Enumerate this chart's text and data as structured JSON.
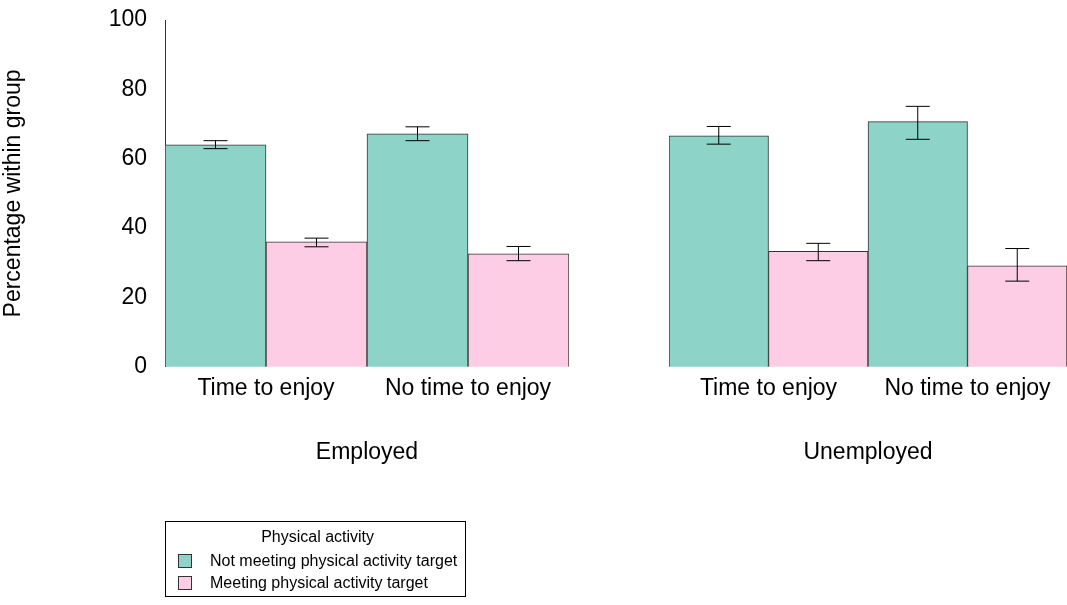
{
  "chart_data": [
    {
      "type": "bar",
      "xlabel": "Employed",
      "ylabel": "Percentage within group",
      "categories": [
        "Time to enjoy",
        "No time to enjoy"
      ],
      "ylim": [
        0,
        100
      ],
      "yticks": [
        0,
        20,
        40,
        60,
        80,
        100
      ],
      "legend": "bottom left",
      "legend_title": "Physical activity",
      "series": [
        {
          "name": "Not meeting physical activity target",
          "color": "#8dd3c7",
          "values": [
            64.0,
            67.2
          ],
          "errors": [
            [
              62.9,
              65.2
            ],
            [
              65.2,
              69.2
            ]
          ]
        },
        {
          "name": "Meeting physical activity target",
          "color": "#fccde5",
          "values": [
            36.0,
            32.6
          ],
          "errors": [
            [
              34.6,
              37.1
            ],
            [
              30.6,
              34.7
            ]
          ]
        }
      ]
    },
    {
      "type": "bar",
      "xlabel": "Unemployed",
      "categories": [
        "Time to enjoy",
        "No time to enjoy"
      ],
      "ylim": [
        0,
        100
      ],
      "tick_labels": "x",
      "series": [
        {
          "color": "#8dd3c7",
          "values": [
            66.6,
            70.7
          ],
          "errors": [
            [
              64.2,
              69.3
            ],
            [
              65.6,
              75.1
            ]
          ]
        },
        {
          "color": "#fccde5",
          "values": [
            33.3,
            29.1
          ],
          "errors": [
            [
              30.6,
              35.6
            ],
            [
              24.7,
              34.1
            ]
          ]
        }
      ]
    }
  ]
}
